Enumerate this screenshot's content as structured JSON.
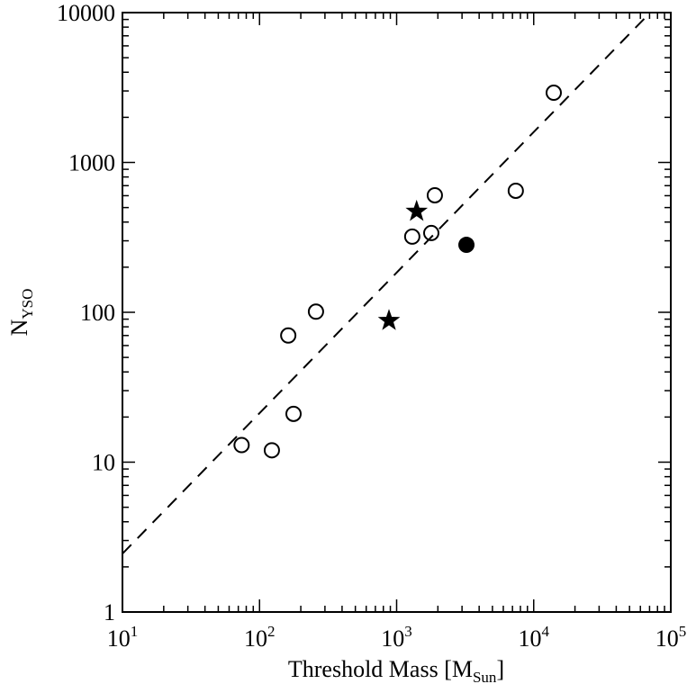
{
  "chart_data": {
    "type": "scatter",
    "xlabel": "Threshold Mass [M",
    "xlabel_sub": "Sun",
    "xlabel_end": "]",
    "ylabel": "N",
    "ylabel_sub": "YSO",
    "xscale": "log",
    "yscale": "log",
    "xlim": [
      10,
      100000
    ],
    "ylim": [
      1,
      10000
    ],
    "grid": false,
    "x_ticks": [
      {
        "base": "10",
        "exp": "1",
        "value": 10
      },
      {
        "base": "10",
        "exp": "2",
        "value": 100
      },
      {
        "base": "10",
        "exp": "3",
        "value": 1000
      },
      {
        "base": "10",
        "exp": "4",
        "value": 10000
      },
      {
        "base": "10",
        "exp": "5",
        "value": 100000
      }
    ],
    "y_ticks": [
      {
        "label": "1",
        "value": 1
      },
      {
        "label": "10",
        "value": 10
      },
      {
        "label": "100",
        "value": 100
      },
      {
        "label": "1000",
        "value": 1000
      },
      {
        "label": "10000",
        "value": 10000
      }
    ],
    "series": [
      {
        "marker": "open-circle",
        "color": "#000000",
        "points": [
          [
            74,
            13
          ],
          [
            123,
            12
          ],
          [
            162,
            70
          ],
          [
            177,
            21
          ],
          [
            258,
            101
          ],
          [
            1300,
            320
          ],
          [
            1790,
            338
          ],
          [
            1900,
            604
          ],
          [
            7400,
            647
          ],
          [
            14000,
            2920
          ]
        ]
      },
      {
        "marker": "filled-circle",
        "color": "#000000",
        "points": [
          [
            3230,
            282
          ]
        ]
      },
      {
        "marker": "star",
        "color": "#000000",
        "points": [
          [
            880,
            88
          ],
          [
            1400,
            471
          ]
        ]
      }
    ],
    "fit_line": {
      "style": "dashed",
      "color": "#000000",
      "points": [
        [
          10,
          2.45
        ],
        [
          70800,
          10000
        ]
      ]
    }
  }
}
